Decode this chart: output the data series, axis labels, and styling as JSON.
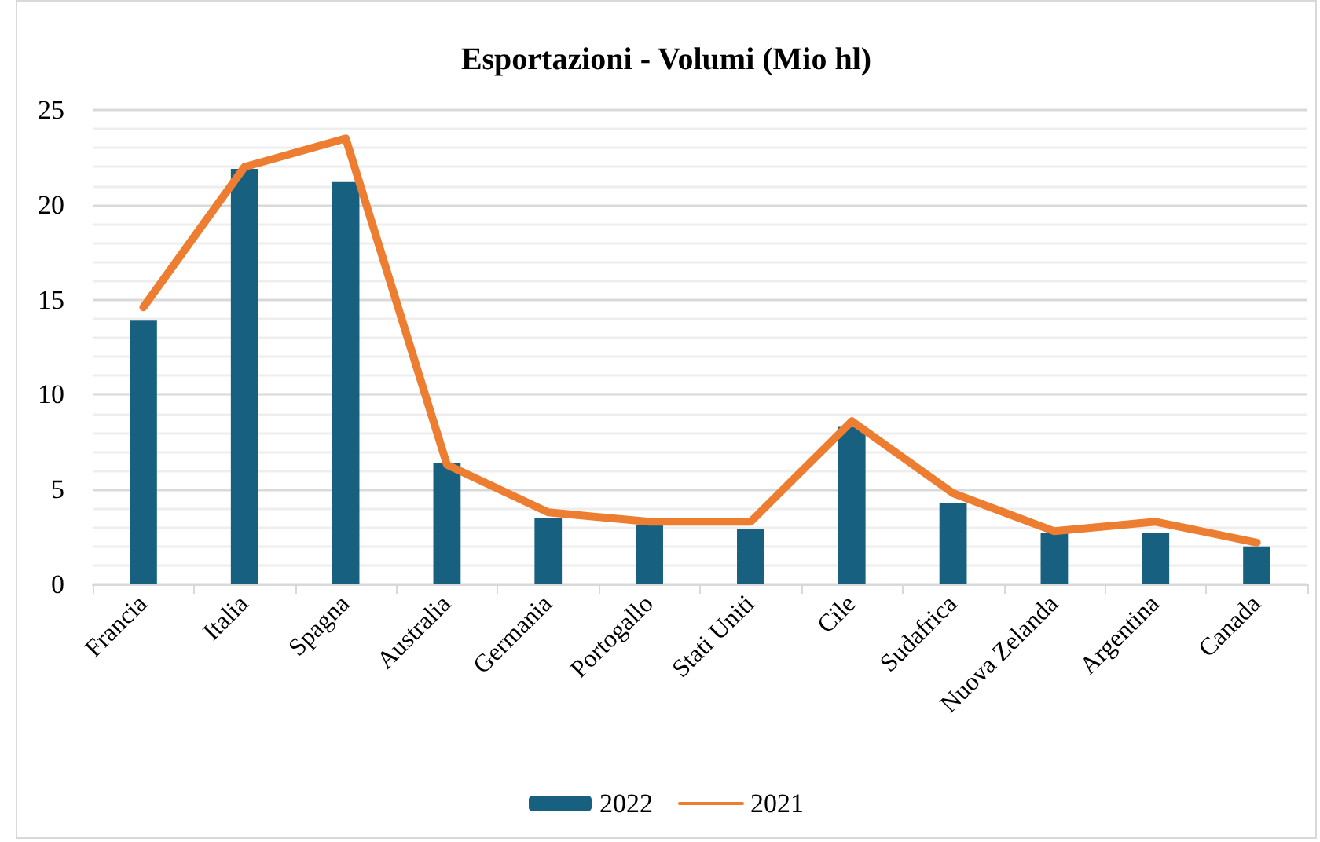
{
  "chart_data": {
    "type": "bar",
    "title": "Esportazioni - Volumi (Mio hl)",
    "categories": [
      "Francia",
      "Italia",
      "Spagna",
      "Australia",
      "Germania",
      "Portogallo",
      "Stati Uniti",
      "Cile",
      "Sudafrica",
      "Nuova Zelanda",
      "Argentina",
      "Canada"
    ],
    "series": [
      {
        "name": "2022",
        "color": "#17607f",
        "values": [
          13.9,
          21.9,
          21.2,
          6.4,
          3.5,
          3.1,
          2.9,
          8.3,
          4.3,
          2.7,
          2.7,
          2.0
        ]
      },
      {
        "name": "2021",
        "type": "line",
        "color": "#ed7d31",
        "marker": "none",
        "line_style": "solid",
        "values": [
          14.6,
          22.0,
          23.5,
          6.3,
          3.8,
          3.3,
          3.3,
          8.6,
          4.8,
          2.8,
          3.3,
          2.2
        ]
      }
    ],
    "ylim": [
      0,
      25
    ],
    "yticks": [
      0,
      5,
      10,
      15,
      20,
      25
    ],
    "grid": "y",
    "legend": "bottom"
  }
}
